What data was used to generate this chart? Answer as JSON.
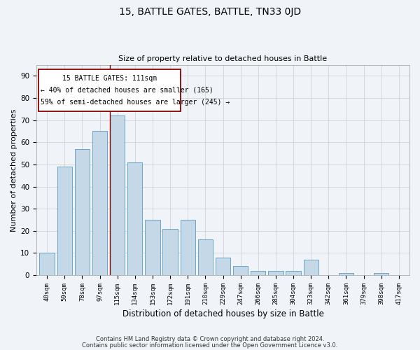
{
  "title": "15, BATTLE GATES, BATTLE, TN33 0JD",
  "subtitle": "Size of property relative to detached houses in Battle",
  "xlabel": "Distribution of detached houses by size in Battle",
  "ylabel": "Number of detached properties",
  "footer1": "Contains HM Land Registry data © Crown copyright and database right 2024.",
  "footer2": "Contains public sector information licensed under the Open Government Licence v3.0.",
  "categories": [
    "40sqm",
    "59sqm",
    "78sqm",
    "97sqm",
    "115sqm",
    "134sqm",
    "153sqm",
    "172sqm",
    "191sqm",
    "210sqm",
    "229sqm",
    "247sqm",
    "266sqm",
    "285sqm",
    "304sqm",
    "323sqm",
    "342sqm",
    "361sqm",
    "379sqm",
    "398sqm",
    "417sqm"
  ],
  "values": [
    10,
    49,
    57,
    65,
    72,
    51,
    25,
    21,
    25,
    16,
    8,
    4,
    2,
    2,
    2,
    7,
    0,
    1,
    0,
    1,
    0
  ],
  "bar_color": "#c5d8e8",
  "bar_edge_color": "#5a9abf",
  "property_line_bin": 4,
  "property_label": "15 BATTLE GATES: 111sqm",
  "annotation_line1": "← 40% of detached houses are smaller (165)",
  "annotation_line2": "59% of semi-detached houses are larger (245) →",
  "line_color": "#8b0000",
  "box_edge_color": "#8b0000",
  "ylim": [
    0,
    95
  ],
  "yticks": [
    0,
    10,
    20,
    30,
    40,
    50,
    60,
    70,
    80,
    90
  ],
  "background_color": "#f0f4f8",
  "grid_color": "#cccccc"
}
